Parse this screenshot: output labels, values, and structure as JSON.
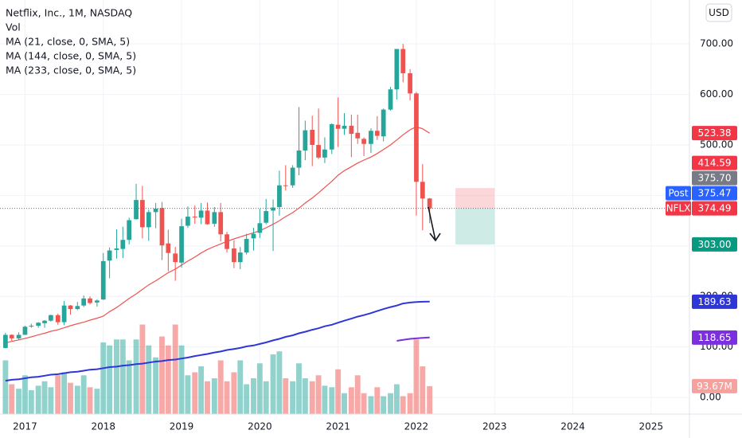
{
  "chart_data": {
    "type": "candlestick",
    "title": "Netflix, Inc., 1M, NASDAQ",
    "currency": "USD",
    "colors": {
      "up": "#26a69a",
      "down": "#ef5350"
    },
    "x": [
      2016.75,
      2016.83,
      2016.92,
      2017,
      2017.08,
      2017.17,
      2017.25,
      2017.33,
      2017.42,
      2017.5,
      2017.58,
      2017.67,
      2017.75,
      2017.83,
      2017.92,
      2018,
      2018.08,
      2018.17,
      2018.25,
      2018.33,
      2018.42,
      2018.5,
      2018.58,
      2018.67,
      2018.75,
      2018.83,
      2018.92,
      2019,
      2019.08,
      2019.17,
      2019.25,
      2019.33,
      2019.42,
      2019.5,
      2019.58,
      2019.67,
      2019.75,
      2019.83,
      2019.92,
      2020,
      2020.08,
      2020.17,
      2020.25,
      2020.33,
      2020.42,
      2020.5,
      2020.58,
      2020.67,
      2020.75,
      2020.83,
      2020.92,
      2021,
      2021.08,
      2021.17,
      2021.25,
      2021.33,
      2021.42,
      2021.5,
      2021.58,
      2021.67,
      2021.75,
      2021.83,
      2021.92,
      2022,
      2022.08,
      2022.17
    ],
    "open": [
      98,
      124,
      117,
      124,
      141,
      142,
      147,
      152,
      163,
      149,
      182,
      175,
      182,
      196,
      188,
      194,
      271,
      292,
      294,
      312,
      353,
      391,
      337,
      367,
      375,
      305,
      285,
      267,
      340,
      358,
      356,
      370,
      344,
      367,
      323,
      295,
      268,
      287,
      315,
      326,
      346,
      370,
      377,
      420,
      420,
      455,
      489,
      530,
      500,
      475,
      491,
      540,
      532,
      538,
      524,
      512,
      502,
      528,
      517,
      570,
      610,
      690,
      642,
      602,
      427,
      394
    ],
    "high": [
      128,
      125,
      129,
      142,
      146,
      149,
      153,
      164,
      166,
      191,
      183,
      189,
      202,
      200,
      194,
      286,
      297,
      333,
      338,
      356,
      423,
      419,
      372,
      385,
      387,
      332,
      298,
      354,
      378,
      380,
      385,
      386,
      377,
      385,
      328,
      311,
      298,
      324,
      336,
      374,
      393,
      392,
      449,
      460,
      460,
      575,
      548,
      558,
      572,
      515,
      543,
      594,
      563,
      560,
      560,
      515,
      533,
      557,
      572,
      615,
      690,
      700,
      650,
      605,
      462,
      395
    ],
    "low": [
      97,
      112,
      114,
      124,
      138,
      138,
      138,
      150,
      144,
      143,
      164,
      173,
      179,
      184,
      180,
      193,
      236,
      275,
      276,
      303,
      352,
      315,
      310,
      335,
      272,
      250,
      231,
      257,
      336,
      344,
      343,
      342,
      338,
      309,
      287,
      256,
      254,
      283,
      291,
      316,
      343,
      290,
      360,
      410,
      415,
      440,
      470,
      458,
      472,
      464,
      482,
      496,
      520,
      476,
      502,
      478,
      484,
      510,
      507,
      568,
      590,
      624,
      588,
      360,
      331,
      345
    ],
    "close": [
      124,
      117,
      124,
      140,
      142,
      148,
      152,
      163,
      149,
      182,
      175,
      181,
      196,
      187,
      192,
      270,
      291,
      295,
      312,
      351,
      391,
      337,
      367,
      374,
      301,
      286,
      268,
      339,
      358,
      357,
      370,
      343,
      367,
      323,
      294,
      268,
      287,
      314,
      324,
      345,
      369,
      376,
      420,
      419,
      455,
      489,
      529,
      500,
      475,
      491,
      541,
      532,
      538,
      522,
      513,
      502,
      528,
      518,
      570,
      610,
      690,
      642,
      602,
      427,
      394,
      374.49
    ],
    "volume": {
      "name": "Vol",
      "ylim": [
        0,
        400
      ],
      "values": [
        180,
        100,
        85,
        130,
        80,
        95,
        110,
        90,
        130,
        140,
        105,
        95,
        130,
        90,
        85,
        240,
        230,
        250,
        250,
        180,
        250,
        300,
        230,
        190,
        260,
        230,
        300,
        230,
        130,
        140,
        160,
        110,
        120,
        180,
        110,
        140,
        180,
        100,
        120,
        170,
        110,
        200,
        210,
        120,
        110,
        170,
        120,
        110,
        130,
        95,
        90,
        150,
        70,
        90,
        130,
        70,
        60,
        90,
        60,
        70,
        100,
        60,
        70,
        250,
        160,
        93.67
      ]
    },
    "series": [
      {
        "name": "MA (21, close, 0, SMA, 5)",
        "color": "#ef5350",
        "values": [
          108,
          111,
          114,
          117,
          120,
          124,
          127,
          131,
          134,
          138,
          142,
          146,
          149,
          153,
          157,
          161,
          170,
          178,
          187,
          196,
          205,
          214,
          223,
          231,
          239,
          247,
          254,
          262,
          270,
          278,
          286,
          293,
          299,
          304,
          309,
          314,
          318,
          322,
          326,
          330,
          336,
          343,
          350,
          358,
          366,
          375,
          385,
          395,
          405,
          416,
          428,
          440,
          449,
          457,
          464,
          470,
          476,
          483,
          491,
          500,
          510,
          520,
          530,
          536,
          532,
          523.38
        ]
      },
      {
        "name": "MA (144, close, 0, SMA, 5)",
        "color": "#2f36d8",
        "values": [
          33,
          35,
          36,
          38,
          40,
          41,
          43,
          45,
          46,
          48,
          50,
          51,
          53,
          55,
          56,
          58,
          60,
          61,
          63,
          64,
          66,
          67,
          69,
          71,
          72,
          74,
          75,
          77,
          79,
          82,
          84,
          86,
          89,
          91,
          94,
          96,
          98,
          101,
          103,
          106,
          109,
          113,
          116,
          120,
          123,
          127,
          130,
          134,
          137,
          141,
          144,
          148,
          152,
          156,
          160,
          163,
          167,
          171,
          175,
          179,
          182,
          186,
          188,
          189,
          189.5,
          189.63
        ]
      },
      {
        "name": "MA (233, close, 0, SMA, 5)",
        "color": "#7b2fdf",
        "values": [
          null,
          null,
          null,
          null,
          null,
          null,
          null,
          null,
          null,
          null,
          null,
          null,
          null,
          null,
          null,
          null,
          null,
          null,
          null,
          null,
          null,
          null,
          null,
          null,
          null,
          null,
          null,
          null,
          null,
          null,
          null,
          null,
          null,
          null,
          null,
          null,
          null,
          null,
          null,
          null,
          null,
          null,
          null,
          null,
          null,
          null,
          null,
          null,
          null,
          null,
          null,
          null,
          null,
          null,
          null,
          null,
          null,
          null,
          null,
          null,
          112,
          114,
          116,
          117,
          118,
          118.65
        ]
      }
    ],
    "ylim": [
      -33,
      787
    ],
    "yticks": [
      {
        "value": 0,
        "label": "0.00"
      },
      {
        "value": 100,
        "label": "100.00"
      },
      {
        "value": 200,
        "label": "200.00"
      },
      {
        "value": 300,
        "label": "300.00"
      },
      {
        "value": 400,
        "label": "400.00"
      },
      {
        "value": 500,
        "label": "500.00"
      },
      {
        "value": 600,
        "label": "600.00"
      },
      {
        "value": 700,
        "label": "700.00"
      }
    ],
    "xlim": [
      2016.68,
      2025.49
    ],
    "xticks": [
      2017,
      2018,
      2019,
      2020,
      2021,
      2022,
      2023,
      2024,
      2025
    ],
    "grid": true,
    "price_tags": [
      {
        "value": 523.38,
        "label": "523.38",
        "color": "#f23645"
      },
      {
        "value": 414.59,
        "label": "414.59",
        "color": "#f23645"
      },
      {
        "value": 375.7,
        "label": "375.70",
        "color": "#787b86"
      },
      {
        "value": 375.47,
        "label": "375.47",
        "color": "#2962ff",
        "prefix": "Post"
      },
      {
        "value": 374.49,
        "label": "374.49",
        "color": "#f23645",
        "prefix": "NFLX"
      },
      {
        "value": 303,
        "label": "303.00",
        "color": "#089981"
      },
      {
        "value": 189.63,
        "label": "189.63",
        "color": "#2f36d8"
      },
      {
        "value": 118.65,
        "label": "118.65",
        "color": "#7b2fdf"
      },
      {
        "value": 93.67,
        "label": "93.67M",
        "color": "#f7a19f",
        "axis": "volume"
      }
    ],
    "position": {
      "stop": 414.59,
      "entry": 374.49,
      "target": 303,
      "start": 2022.5,
      "end": 2023
    }
  }
}
